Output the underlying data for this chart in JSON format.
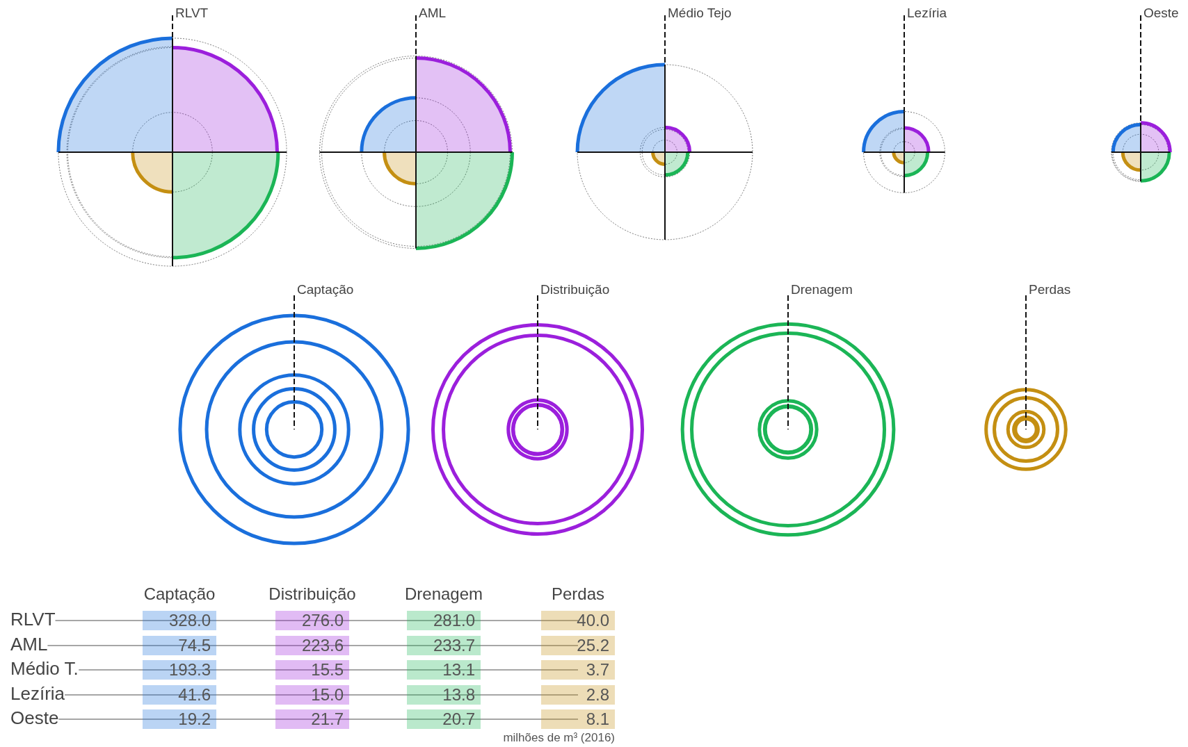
{
  "chart_data": {
    "type": "other",
    "categories": [
      "RLVT",
      "AML",
      "Médio T.",
      "Lezíria",
      "Oeste"
    ],
    "series": [
      {
        "name": "Captação",
        "color": "#1a6fdc",
        "values": [
          328.0,
          74.5,
          193.3,
          41.6,
          19.2
        ],
        "value_labels": [
          "328.0",
          "74.5",
          "193.3",
          "41.6",
          "19.2"
        ]
      },
      {
        "name": "Distribuição",
        "color": "#9b1fdc",
        "values": [
          276.0,
          223.6,
          15.5,
          15.0,
          21.7
        ],
        "value_labels": [
          "276.0",
          "223.6",
          "15.5",
          "15.0",
          "21.7"
        ]
      },
      {
        "name": "Drenagem",
        "color": "#1bb556",
        "values": [
          281.0,
          233.7,
          13.1,
          13.8,
          20.7
        ],
        "value_labels": [
          "281.0",
          "233.7",
          "13.1",
          "13.8",
          "20.7"
        ]
      },
      {
        "name": "Perdas",
        "color": "#c48f12",
        "values": [
          40.0,
          25.2,
          3.7,
          2.8,
          8.1
        ],
        "value_labels": [
          "40.0",
          "25.2",
          "3.7",
          "2.8",
          "8.1"
        ]
      }
    ],
    "annotations": [
      "RLVT",
      "AML",
      "Médio Tejo",
      "Lezíria",
      "Oeste",
      "milhões de m³ (2016)"
    ]
  }
}
